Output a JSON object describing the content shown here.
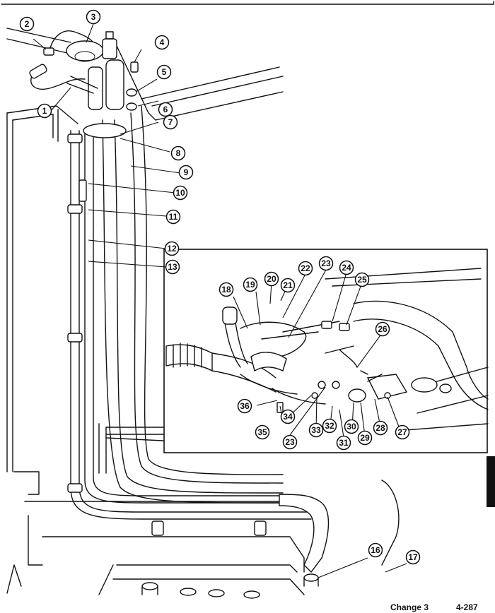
{
  "figure": {
    "callouts": [
      "1",
      "2",
      "3",
      "4",
      "5",
      "6",
      "7",
      "8",
      "9",
      "10",
      "11",
      "12",
      "13",
      "16",
      "17",
      "18",
      "19",
      "20",
      "21",
      "22",
      "23",
      "24",
      "25",
      "26",
      "27",
      "28",
      "29",
      "30",
      "31",
      "32",
      "33",
      "34",
      "35",
      "36"
    ],
    "inset_callouts_23": "23"
  },
  "footer": {
    "change": "Change 3",
    "page": "4-287"
  }
}
